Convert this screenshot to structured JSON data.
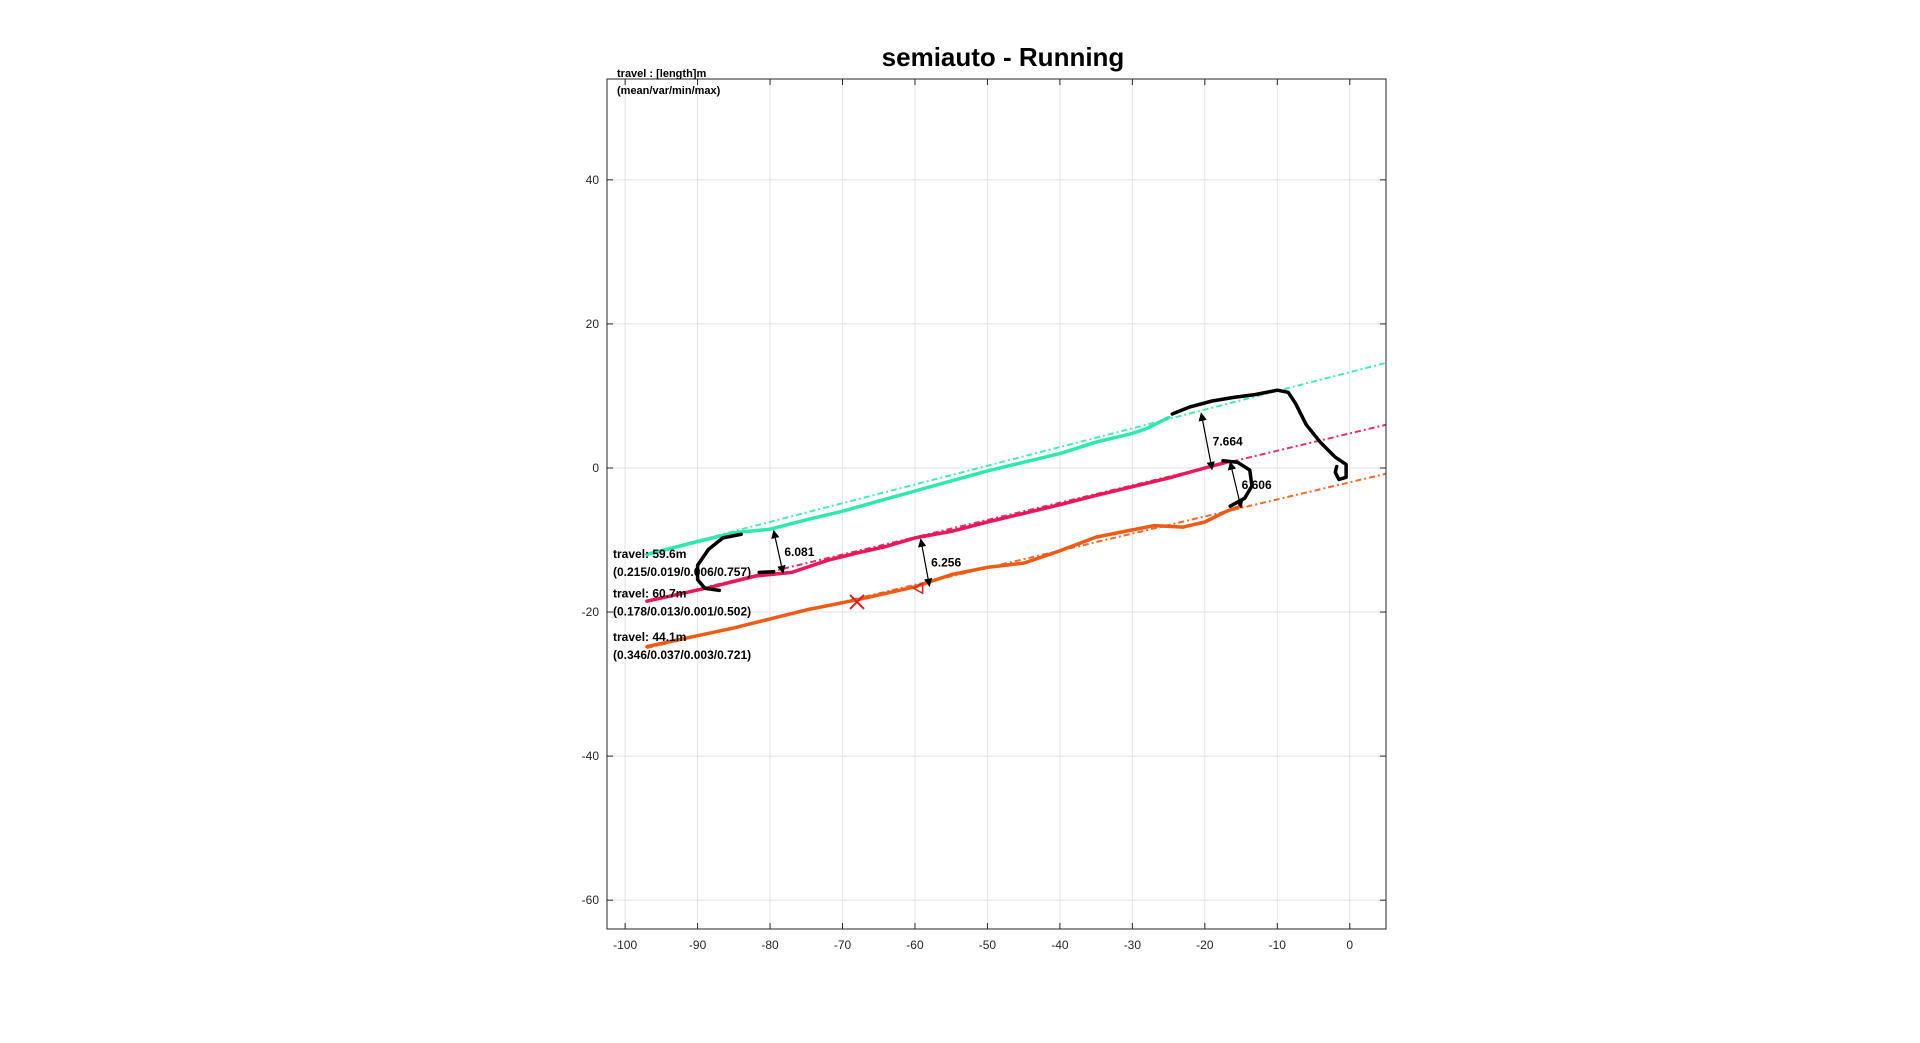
{
  "chart_data": {
    "type": "line",
    "title": "semiauto - Running",
    "xlabel": "",
    "ylabel": "",
    "xlim": [
      -102.5,
      5
    ],
    "ylim": [
      -64,
      54
    ],
    "xticks": [
      -100,
      -90,
      -80,
      -70,
      -60,
      -50,
      -40,
      -30,
      -20,
      -10,
      0
    ],
    "yticks": [
      40,
      20,
      0,
      -20,
      -40,
      -60
    ],
    "grid": true,
    "legend_header": [
      "travel : [length]m",
      "(mean/var/min/max)"
    ],
    "colors": {
      "track_1": "#2ee8b0",
      "track_2": "#e8185a",
      "track_3": "#f05a14",
      "black_path": "#000000",
      "marker": "#e02020"
    },
    "series": [
      {
        "color": "#2ee8b0",
        "fit_line": [
          [
            -97,
            -11.9
          ],
          [
            5,
            14.6
          ]
        ],
        "points": [
          [
            -97,
            -12
          ],
          [
            -90,
            -10.2
          ],
          [
            -85,
            -9
          ],
          [
            -80,
            -8.5
          ],
          [
            -75,
            -7.2
          ],
          [
            -70,
            -6
          ],
          [
            -65,
            -4.6
          ],
          [
            -60,
            -3.2
          ],
          [
            -55,
            -1.8
          ],
          [
            -50,
            -0.4
          ],
          [
            -45,
            0.8
          ],
          [
            -40,
            2
          ],
          [
            -35,
            3.6
          ],
          [
            -30,
            4.8
          ],
          [
            -28,
            5.5
          ],
          [
            -25,
            7
          ]
        ],
        "label": [
          "travel: 59.6m",
          "(0.215/0.019/0.006/0.757)"
        ]
      },
      {
        "color": "#e8185a",
        "fit_line": [
          [
            -97,
            -18.5
          ],
          [
            5,
            6.0
          ]
        ],
        "points": [
          [
            -97,
            -18.5
          ],
          [
            -88,
            -16.5
          ],
          [
            -82,
            -15
          ],
          [
            -77,
            -14.5
          ],
          [
            -72,
            -12.8
          ],
          [
            -68,
            -11.8
          ],
          [
            -64,
            -10.9
          ],
          [
            -60,
            -9.7
          ],
          [
            -55,
            -8.8
          ],
          [
            -50,
            -7.5
          ],
          [
            -45,
            -6.3
          ],
          [
            -40,
            -5.1
          ],
          [
            -35,
            -3.8
          ],
          [
            -30,
            -2.6
          ],
          [
            -25,
            -1.4
          ],
          [
            -20,
            0
          ],
          [
            -17,
            0.8
          ]
        ],
        "label": [
          "travel: 60.7m",
          "(0.178/0.013/0.001/0.502)"
        ]
      },
      {
        "color": "#f05a14",
        "fit_line": [
          [
            -97,
            -25.0
          ],
          [
            5,
            -0.8
          ]
        ],
        "points": [
          [
            -97,
            -24.8
          ],
          [
            -85,
            -22.2
          ],
          [
            -75,
            -19.7
          ],
          [
            -68,
            -18.3
          ],
          [
            -60,
            -16.5
          ],
          [
            -55,
            -14.8
          ],
          [
            -50,
            -13.8
          ],
          [
            -45,
            -13.2
          ],
          [
            -40,
            -11.5
          ],
          [
            -35,
            -9.6
          ],
          [
            -30,
            -8.6
          ],
          [
            -27,
            -8
          ],
          [
            -23,
            -8.2
          ],
          [
            -20,
            -7.5
          ],
          [
            -17,
            -6
          ],
          [
            -15,
            -5.3
          ]
        ],
        "label": [
          "travel: 44.1m",
          "(0.346/0.037/0.003/0.721)"
        ]
      }
    ],
    "black_paths": [
      [
        [
          -24.5,
          7.5
        ],
        [
          -22,
          8.5
        ],
        [
          -19,
          9.3
        ],
        [
          -16,
          9.8
        ],
        [
          -13,
          10.2
        ],
        [
          -10,
          10.8
        ],
        [
          -8.5,
          10.5
        ],
        [
          -7.5,
          9
        ],
        [
          -6,
          6
        ],
        [
          -4,
          3.5
        ],
        [
          -2,
          1.5
        ],
        [
          -0.5,
          0.5
        ],
        [
          -0.5,
          -1.3
        ],
        [
          -1.5,
          -1.6
        ],
        [
          -2,
          -0.6
        ],
        [
          -1.8,
          0.2
        ]
      ],
      [
        [
          -84,
          -9.2
        ],
        [
          -86.5,
          -9.7
        ],
        [
          -88.5,
          -11.3
        ],
        [
          -90,
          -13.5
        ],
        [
          -90,
          -15.5
        ],
        [
          -89,
          -16.7
        ],
        [
          -87,
          -17
        ]
      ],
      [
        [
          -17.5,
          1
        ],
        [
          -15.5,
          0.8
        ],
        [
          -13.8,
          -0.3
        ],
        [
          -13.5,
          -2.5
        ],
        [
          -14.5,
          -4.2
        ],
        [
          -16.5,
          -5.3
        ]
      ],
      [
        [
          -79.5,
          -14.4
        ],
        [
          -81.5,
          -14.5
        ]
      ]
    ],
    "distance_annotations": [
      {
        "value": "6.081",
        "from": [
          -79.5,
          -8.7
        ],
        "to": [
          -78.2,
          -14.6
        ]
      },
      {
        "value": "6.256",
        "from": [
          -59.2,
          -9.9
        ],
        "to": [
          -58.0,
          -16.4
        ]
      },
      {
        "value": "7.664",
        "from": [
          -20.5,
          7.6
        ],
        "to": [
          -19.0,
          -0.2
        ]
      },
      {
        "value": "6.606",
        "from": [
          -16.5,
          0.8
        ],
        "to": [
          -15.0,
          -5.5
        ]
      }
    ],
    "markers": [
      {
        "symbol": "x",
        "x": -68,
        "y": -18.6,
        "color": "#e02020"
      },
      {
        "symbol": "triangle",
        "x": -59.5,
        "y": -16.7,
        "color": "#e02020"
      }
    ]
  }
}
